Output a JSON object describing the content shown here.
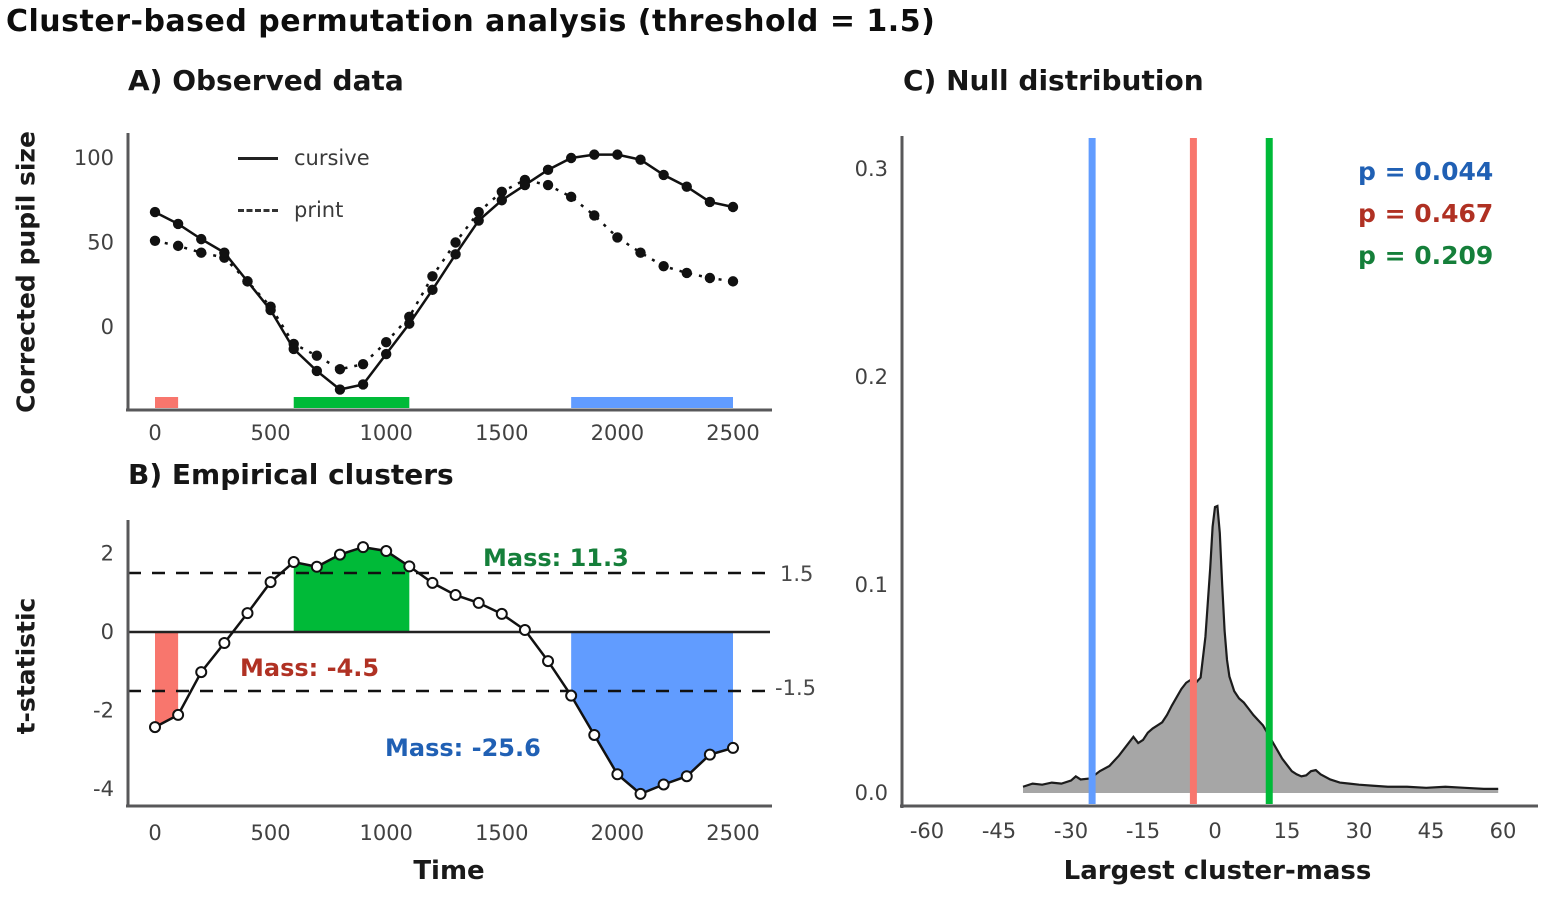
{
  "figure": {
    "title": "Cluster-based permutation analysis (threshold = 1.5)",
    "background": "#ffffff"
  },
  "panels": {
    "a": {
      "title": "A) Observed data",
      "ylabel": "Corrected pupil size"
    },
    "b": {
      "title": "B) Empirical clusters",
      "ylabel": "t-statistic",
      "xlabel": "Time"
    },
    "c": {
      "title": "C) Null distribution",
      "xlabel": "Largest cluster-mass"
    }
  },
  "chart_data": [
    {
      "type": "line",
      "title": "A) Observed data",
      "ylabel": "Corrected pupil size",
      "x": [
        0,
        100,
        200,
        300,
        400,
        500,
        600,
        700,
        800,
        900,
        1000,
        1100,
        1200,
        1300,
        1400,
        1500,
        1600,
        1700,
        1800,
        1900,
        2000,
        2100,
        2200,
        2300,
        2400,
        2500
      ],
      "series": [
        {
          "name": "cursive",
          "style": "solid",
          "color": "#111111",
          "values": [
            68,
            61,
            52,
            44,
            27,
            10,
            -13,
            -26,
            -37,
            -34,
            -16,
            2,
            22,
            43,
            63,
            75,
            84,
            93,
            100,
            102,
            102,
            99,
            90,
            83,
            74,
            71
          ]
        },
        {
          "name": "print",
          "style": "dashed",
          "color": "#111111",
          "values": [
            51,
            48,
            44,
            41,
            27,
            12,
            -10,
            -17,
            -25,
            -22,
            -9,
            6,
            30,
            50,
            68,
            80,
            87,
            84,
            77,
            66,
            53,
            44,
            36,
            32,
            29,
            27
          ]
        }
      ],
      "x_ticks": [
        0,
        500,
        1000,
        1500,
        2000,
        2500
      ],
      "y_ticks": [
        0,
        50,
        100
      ],
      "xlim": [
        0,
        2500
      ],
      "ylim": [
        -50,
        115
      ],
      "legend_position": "top-left-inside",
      "cluster_bars": [
        {
          "name": "red",
          "color": "#f8766d",
          "range": [
            0,
            100
          ]
        },
        {
          "name": "green",
          "color": "#00ba38",
          "range": [
            600,
            1100
          ]
        },
        {
          "name": "blue",
          "color": "#619cff",
          "range": [
            1800,
            2500
          ]
        }
      ]
    },
    {
      "type": "line",
      "title": "B) Empirical clusters",
      "ylabel": "t-statistic",
      "xlabel": "Time",
      "x": [
        0,
        100,
        200,
        300,
        400,
        500,
        600,
        700,
        800,
        900,
        1000,
        1100,
        1200,
        1300,
        1400,
        1500,
        1600,
        1700,
        1800,
        1900,
        2000,
        2100,
        2200,
        2300,
        2400,
        2500
      ],
      "values": [
        -2.42,
        -2.11,
        -1.02,
        -0.28,
        0.48,
        1.27,
        1.78,
        1.66,
        1.97,
        2.16,
        2.06,
        1.67,
        1.25,
        0.94,
        0.74,
        0.46,
        0.05,
        -0.74,
        -1.62,
        -2.62,
        -3.62,
        -4.12,
        -3.88,
        -3.67,
        -3.12,
        -2.95
      ],
      "x_ticks": [
        0,
        500,
        1000,
        1500,
        2000,
        2500
      ],
      "y_ticks": [
        2,
        0,
        -2,
        -4
      ],
      "xlim": [
        0,
        2500
      ],
      "ylim": [
        -4.6,
        2.6
      ],
      "threshold": 1.5,
      "threshold_labels": {
        "upper": "1.5",
        "lower": "-1.5"
      },
      "clusters": [
        {
          "name": "red",
          "color": "#f8766d",
          "text_color": "#b03123",
          "range": [
            0,
            100
          ],
          "mass": -4.5,
          "mass_label": "Mass: -4.5"
        },
        {
          "name": "green",
          "color": "#00ba38",
          "text_color": "#157f3a",
          "range": [
            600,
            1100
          ],
          "mass": 11.3,
          "mass_label": "Mass: 11.3"
        },
        {
          "name": "blue",
          "color": "#619cff",
          "text_color": "#2060b4",
          "range": [
            1800,
            2500
          ],
          "mass": -25.6,
          "mass_label": "Mass: -25.6"
        }
      ]
    },
    {
      "type": "area",
      "title": "C) Null distribution",
      "xlabel": "Largest cluster-mass",
      "x_ticks": [
        -60,
        -45,
        -30,
        -15,
        0,
        15,
        30,
        45,
        60
      ],
      "y_ticks": [
        0,
        0.1,
        0.2,
        0.3
      ],
      "y_tick_labels": [
        "0.0",
        "0.1",
        "0.2",
        "0.3"
      ],
      "xlim": [
        -66,
        66
      ],
      "ylim": [
        0,
        0.32
      ],
      "fill_color": "#a6a6a6",
      "density": [
        [
          -40,
          0.003
        ],
        [
          -38,
          0.0045
        ],
        [
          -36,
          0.004
        ],
        [
          -34,
          0.005
        ],
        [
          -32,
          0.0045
        ],
        [
          -30,
          0.006
        ],
        [
          -29,
          0.008
        ],
        [
          -28,
          0.0065
        ],
        [
          -26,
          0.007
        ],
        [
          -24,
          0.0105
        ],
        [
          -22,
          0.013
        ],
        [
          -20,
          0.018
        ],
        [
          -18,
          0.024
        ],
        [
          -17,
          0.027
        ],
        [
          -16,
          0.024
        ],
        [
          -15,
          0.0255
        ],
        [
          -14,
          0.029
        ],
        [
          -13,
          0.031
        ],
        [
          -12,
          0.0325
        ],
        [
          -11,
          0.034
        ],
        [
          -10,
          0.0375
        ],
        [
          -9,
          0.042
        ],
        [
          -8,
          0.046
        ],
        [
          -7,
          0.05
        ],
        [
          -6,
          0.053
        ],
        [
          -5,
          0.0545
        ],
        [
          -4,
          0.053
        ],
        [
          -3,
          0.0555
        ],
        [
          -2,
          0.075
        ],
        [
          -1,
          0.108
        ],
        [
          -0.5,
          0.128
        ],
        [
          0,
          0.1375
        ],
        [
          0.5,
          0.138
        ],
        [
          1,
          0.125
        ],
        [
          1.5,
          0.1
        ],
        [
          2,
          0.078
        ],
        [
          2.5,
          0.064
        ],
        [
          3,
          0.056
        ],
        [
          4,
          0.049
        ],
        [
          5,
          0.0455
        ],
        [
          6,
          0.0435
        ],
        [
          7,
          0.0405
        ],
        [
          8,
          0.0375
        ],
        [
          9,
          0.035
        ],
        [
          10,
          0.0325
        ],
        [
          11,
          0.0285
        ],
        [
          12,
          0.0245
        ],
        [
          13,
          0.0205
        ],
        [
          14,
          0.0165
        ],
        [
          15,
          0.0135
        ],
        [
          16,
          0.0105
        ],
        [
          17,
          0.009
        ],
        [
          18,
          0.008
        ],
        [
          19,
          0.0085
        ],
        [
          20,
          0.0105
        ],
        [
          21,
          0.011
        ],
        [
          22,
          0.009
        ],
        [
          24,
          0.0065
        ],
        [
          26,
          0.005
        ],
        [
          28,
          0.0045
        ],
        [
          30,
          0.004
        ],
        [
          33,
          0.0035
        ],
        [
          36,
          0.003
        ],
        [
          40,
          0.003
        ],
        [
          44,
          0.0025
        ],
        [
          48,
          0.003
        ],
        [
          52,
          0.0025
        ],
        [
          56,
          0.002
        ],
        [
          59,
          0.002
        ]
      ],
      "vlines": [
        {
          "value": -25.6,
          "color": "#619cff",
          "label": "p = 0.044",
          "label_color": "#2060b4"
        },
        {
          "value": -4.5,
          "color": "#f8766d",
          "label": "p = 0.467",
          "label_color": "#b03123"
        },
        {
          "value": 11.3,
          "color": "#00ba38",
          "label": "p = 0.209",
          "label_color": "#157f3a"
        }
      ]
    }
  ]
}
